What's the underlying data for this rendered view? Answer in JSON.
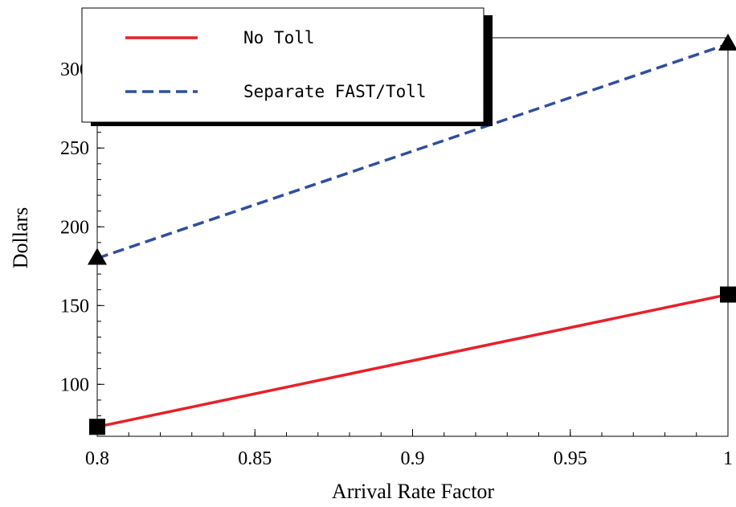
{
  "chart_data": {
    "type": "line",
    "title": "",
    "xlabel": "Arrival Rate Factor",
    "ylabel": "Dollars",
    "xlim": [
      0.8,
      1.0
    ],
    "ylim": [
      67,
      320
    ],
    "x_ticks": [
      0.8,
      0.85,
      0.9,
      0.95,
      1.0
    ],
    "x_tick_labels": [
      "0.8",
      "0.85",
      "0.9",
      "0.95",
      "1"
    ],
    "y_ticks": [
      100,
      150,
      200,
      250,
      300
    ],
    "y_tick_labels": [
      "100",
      "150",
      "200",
      "250",
      "300"
    ],
    "grid": false,
    "legend_position": "top-left",
    "series": [
      {
        "name": "No Toll",
        "color": "#e8202a",
        "line_style": "solid",
        "marker": "square",
        "x": [
          0.8,
          1.0
        ],
        "y": [
          73,
          157
        ]
      },
      {
        "name": "Separate FAST/Toll",
        "color": "#2f4f9e",
        "line_style": "dashed",
        "marker": "triangle",
        "x": [
          0.8,
          1.0
        ],
        "y": [
          180,
          316
        ]
      }
    ]
  }
}
